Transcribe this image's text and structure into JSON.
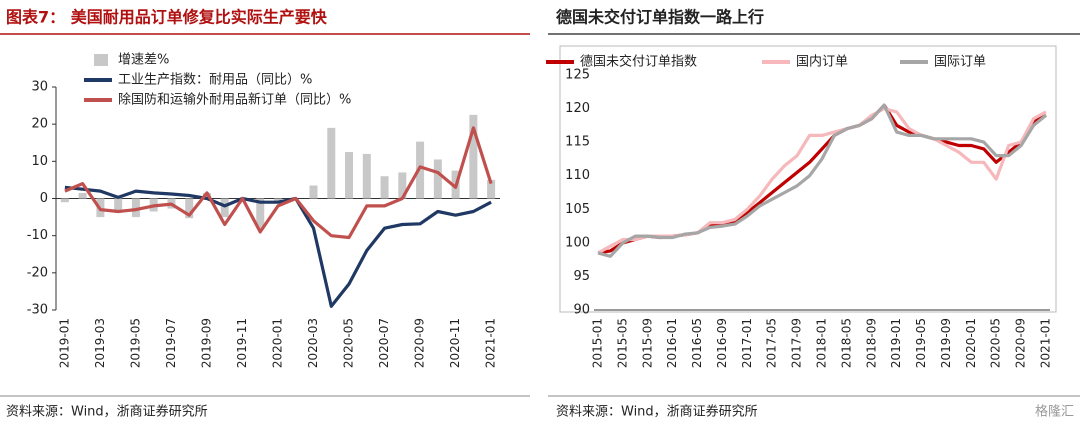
{
  "chart_data": [
    {
      "type": "combo",
      "title": "图表7：  美国耐用品订单修复比实际生产要快",
      "source": "资料来源：Wind，浙商证券研究所",
      "categories": [
        "2019-01",
        null,
        "2019-03",
        null,
        "2019-05",
        null,
        "2019-07",
        null,
        "2019-09",
        null,
        "2019-11",
        null,
        "2020-01",
        null,
        "2020-03",
        null,
        "2020-05",
        null,
        "2020-07",
        null,
        "2020-09",
        null,
        "2020-11",
        null,
        "2021-01"
      ],
      "ylim": [
        -30,
        30
      ],
      "yticks": [
        -30,
        -20,
        -10,
        0,
        10,
        20,
        30
      ],
      "series": [
        {
          "name": "增速差%",
          "type": "bar",
          "color": "#c8c8c8",
          "values": [
            -1,
            1.5,
            -5,
            -3.8,
            -5,
            -3.5,
            -2.7,
            -5.3,
            1.5,
            -5,
            0,
            -8,
            -1,
            0,
            3.5,
            19,
            12.5,
            12,
            6,
            7,
            15.3,
            10.5,
            7.5,
            22.5,
            5
          ]
        },
        {
          "name": "工业生产指数：耐用品（同比）%",
          "type": "line",
          "color": "#1f3864",
          "values": [
            3,
            2.5,
            2,
            0.3,
            2,
            1.5,
            1.2,
            0.8,
            0,
            -2,
            0,
            -1,
            -1,
            0,
            -8,
            -29,
            -23,
            -14,
            -8,
            -7,
            -6.8,
            -3.5,
            -4.5,
            -3.5,
            -1
          ]
        },
        {
          "name": "除国防和运输外耐用品新订单（同比）%",
          "type": "line",
          "color": "#c0504d",
          "values": [
            2,
            4,
            -3,
            -3.5,
            -3,
            -2,
            -1.5,
            -4.5,
            1.5,
            -7,
            0,
            -9,
            -2,
            0,
            -6,
            -10,
            -10.5,
            -2,
            -2,
            0,
            8.5,
            7,
            3,
            19,
            4
          ]
        }
      ]
    },
    {
      "type": "line",
      "title": "德国未交付订单指数一路上行",
      "source": "资料来源：Wind，浙商证券研究所",
      "watermark": "格隆汇",
      "categories": [
        "2015-01",
        null,
        "2015-05",
        null,
        "2015-09",
        null,
        "2016-01",
        null,
        "2016-05",
        null,
        "2016-09",
        null,
        "2017-01",
        null,
        "2017-05",
        null,
        "2017-09",
        null,
        "2018-01",
        null,
        "2018-05",
        null,
        "2018-09",
        null,
        "2019-01",
        null,
        "2019-05",
        null,
        "2019-09",
        null,
        "2020-01",
        null,
        "2020-05",
        null,
        "2020-09",
        null,
        "2021-01"
      ],
      "ylim": [
        90,
        125
      ],
      "yticks": [
        90,
        95,
        100,
        105,
        110,
        115,
        120,
        125
      ],
      "series": [
        {
          "name": "德国未交付订单指数",
          "color": "#c00000",
          "values": [
            98.5,
            98.8,
            100,
            100.5,
            101,
            100.8,
            101,
            101.2,
            101.5,
            102.5,
            102.8,
            103,
            104.5,
            106,
            107.5,
            109,
            110.5,
            112,
            114,
            116,
            117,
            117.5,
            118.5,
            120.5,
            117.5,
            116.5,
            116,
            115.5,
            115,
            114.5,
            114.5,
            114,
            112,
            113.5,
            115,
            118,
            119
          ]
        },
        {
          "name": "国内订单",
          "color": "#f6b8ba",
          "values": [
            98.5,
            99.5,
            100.5,
            100.5,
            101,
            101,
            101,
            101.2,
            101.5,
            103,
            103,
            103.5,
            105,
            107,
            109.5,
            111.5,
            113,
            116,
            116,
            116.5,
            117,
            117.5,
            119,
            120,
            119.5,
            117,
            116,
            115.5,
            114.5,
            113.5,
            112,
            112,
            109.5,
            114.5,
            115,
            118.5,
            119.5
          ]
        },
        {
          "name": "国际订单",
          "color": "#a6a6a6",
          "values": [
            98.5,
            98,
            100,
            101,
            101,
            100.8,
            100.8,
            101.3,
            101.5,
            102.3,
            102.5,
            102.8,
            104,
            105.5,
            106.5,
            107.5,
            108.5,
            110,
            112.5,
            116,
            117,
            117.5,
            118.5,
            120.5,
            116.5,
            116,
            116,
            115.5,
            115.5,
            115.5,
            115.5,
            115,
            113,
            113,
            114.5,
            117.5,
            119
          ]
        }
      ]
    }
  ]
}
